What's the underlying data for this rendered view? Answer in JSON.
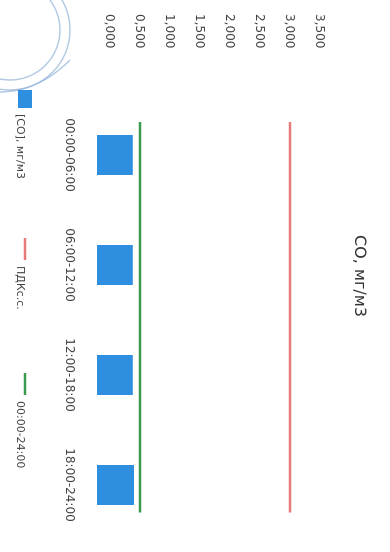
{
  "chart_data": {
    "type": "bar",
    "title": "CO, мг/м3",
    "categories": [
      "00:00-06:00",
      "06:00-12:00",
      "12:00-18:00",
      "18:00-24:00"
    ],
    "y_ticks": [
      "0,000",
      "0,500",
      "1,000",
      "1,500",
      "2,000",
      "2,500",
      "3,000",
      "3,500"
    ],
    "ylim": [
      0,
      3.5
    ],
    "orientation": "rotated-90-clockwise",
    "grid": false,
    "legend_position": "bottom",
    "series": [
      {
        "name": "[CO], мг/м3",
        "kind": "bar",
        "color": "#2e8fe0",
        "values": [
          0.38,
          0.38,
          0.38,
          0.4
        ]
      },
      {
        "name": "ПДКс.с.",
        "kind": "line",
        "color": "#e87a7a",
        "values": [
          3.0,
          3.0,
          3.0,
          3.0
        ]
      },
      {
        "name": "00:00-24:00",
        "kind": "line",
        "color": "#3a9a50",
        "values": [
          0.5,
          0.5,
          0.5,
          0.5
        ]
      }
    ]
  }
}
